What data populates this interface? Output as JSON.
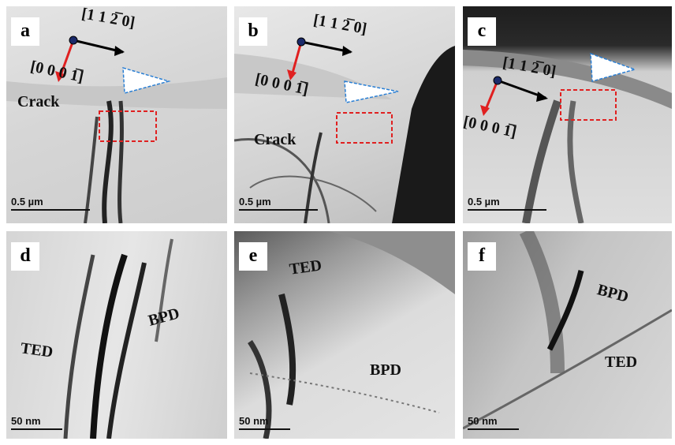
{
  "panels": [
    {
      "label": "a",
      "scale_bar": "0.5 µm",
      "annotations": [
        "[1 1 2̅ 0]",
        "[0 0 0 1̅]",
        "Crack"
      ]
    },
    {
      "label": "b",
      "scale_bar": "0.5 µm",
      "annotations": [
        "[1 1 2̅ 0]",
        "[0 0 0 1̅]",
        "Crack"
      ]
    },
    {
      "label": "c",
      "scale_bar": "0.5 µm",
      "annotations": [
        "[1 1 2̅ 0]",
        "[0 0 0 1̅]"
      ]
    },
    {
      "label": "d",
      "scale_bar": "50 nm",
      "annotations": [
        "BPD",
        "TED"
      ]
    },
    {
      "label": "e",
      "scale_bar": "50 nm",
      "annotations": [
        "TED",
        "BPD"
      ]
    },
    {
      "label": "f",
      "scale_bar": "50 nm",
      "annotations": [
        "BPD",
        "TED"
      ]
    }
  ]
}
